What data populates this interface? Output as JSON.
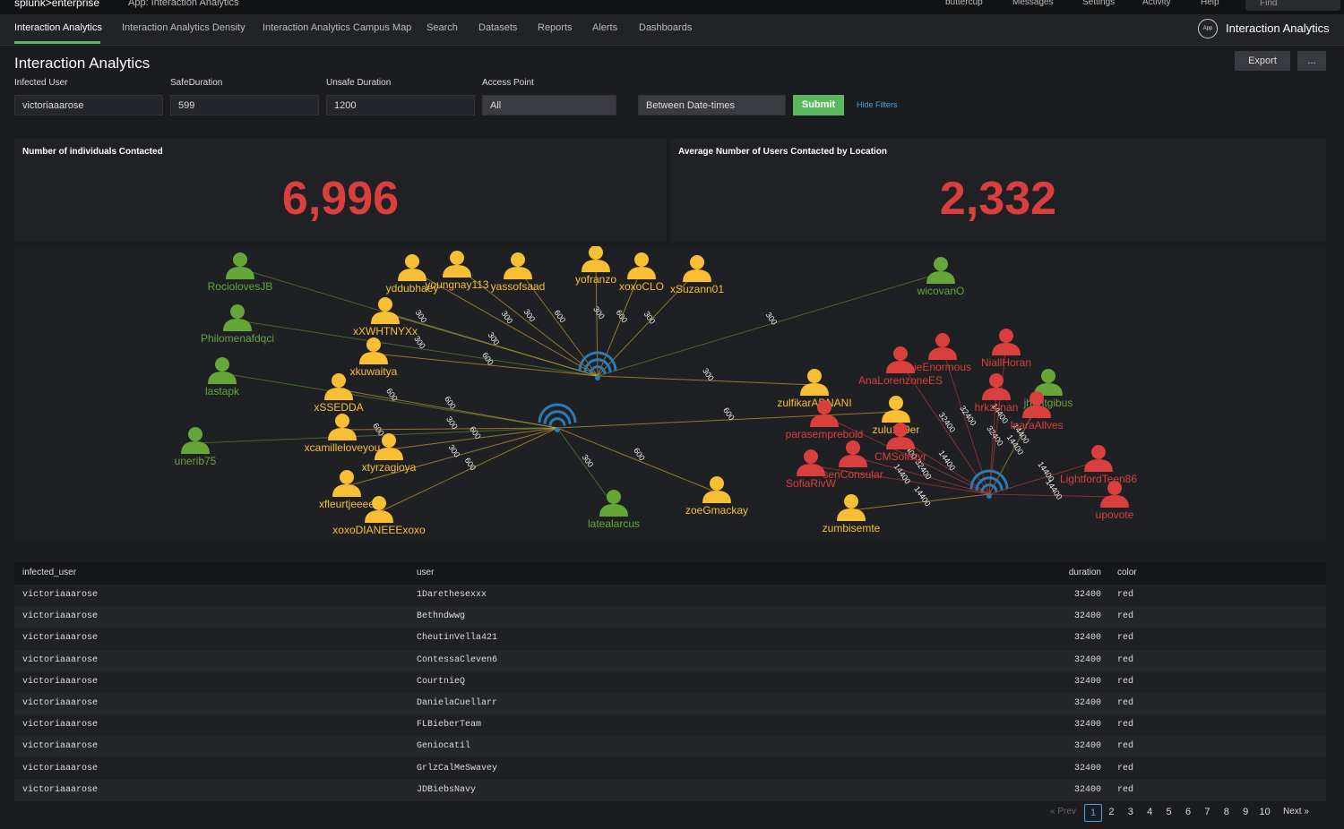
{
  "topbar": {
    "logo": "splunk>enterprise",
    "app": "App: Interaction Analytics",
    "menus": [
      "buttercup",
      "Messages",
      "Settings",
      "Activity",
      "Help"
    ],
    "find": "Find"
  },
  "nav": {
    "tabs": [
      "Interaction Analytics",
      "Interaction Analytics Density",
      "Interaction Analytics Campus Map",
      "Search",
      "Datasets",
      "Reports",
      "Alerts",
      "Dashboards"
    ],
    "app_icon": "App",
    "app_name": "Interaction Analytics"
  },
  "header": {
    "title": "Interaction Analytics",
    "export": "Export",
    "more": "..."
  },
  "filters": {
    "labels": [
      "Infected User",
      "SafeDuration",
      "Unsafe Duration",
      "Access Point"
    ],
    "values": [
      "victoriaaarose",
      "599",
      "1200",
      "All"
    ],
    "time": "Between Date-times",
    "submit": "Submit",
    "hide": "Hide Filters"
  },
  "panels": [
    {
      "title": "Number of individuals Contacted",
      "value": "6,996"
    },
    {
      "title": "Average Number of Users Contacted by Location",
      "value": "2,332"
    }
  ],
  "graph": {
    "nodes": [
      {
        "label": "RociolovesJB",
        "color": "green"
      },
      {
        "label": "Philomenafdqci",
        "color": "green"
      },
      {
        "label": "lastapk",
        "color": "green"
      },
      {
        "label": "unerib75",
        "color": "green"
      },
      {
        "label": "wicovanO",
        "color": "green"
      },
      {
        "label": "jhuntgibus",
        "color": "green"
      },
      {
        "label": "latealarcus",
        "color": "green"
      },
      {
        "label": "yddubhaey",
        "color": "yellow"
      },
      {
        "label": "youngnay113",
        "color": "yellow"
      },
      {
        "label": "yassofsaad",
        "color": "yellow"
      },
      {
        "label": "yofranzo",
        "color": "yellow"
      },
      {
        "label": "xoxoCLO",
        "color": "yellow"
      },
      {
        "label": "xSuzann01",
        "color": "yellow"
      },
      {
        "label": "xXWHTNYXx",
        "color": "yellow"
      },
      {
        "label": "xkuwaitya",
        "color": "yellow"
      },
      {
        "label": "xSSEDDA",
        "color": "yellow"
      },
      {
        "label": "xcamilleloveyou",
        "color": "yellow"
      },
      {
        "label": "xtyrzagioya",
        "color": "yellow"
      },
      {
        "label": "xfleurtjeeee",
        "color": "yellow"
      },
      {
        "label": "xoxoDIANEEExoxo",
        "color": "yellow"
      },
      {
        "label": "zulfikarADNANI",
        "color": "yellow"
      },
      {
        "label": "zulu149er",
        "color": "yellow"
      },
      {
        "label": "zoeGmackay",
        "color": "yellow"
      },
      {
        "label": "zumbisemte",
        "color": "yellow"
      },
      {
        "label": "parasemprebold",
        "color": "red"
      },
      {
        "label": "CMSolistyr",
        "color": "red"
      },
      {
        "label": "LightfordTeen86",
        "color": "red"
      },
      {
        "label": "upovote",
        "color": "red"
      },
      {
        "label": "AnaLorenzoneES",
        "color": "red"
      },
      {
        "label": "InaraAllves",
        "color": "red"
      },
      {
        "label": "hrkztinan",
        "color": "red"
      },
      {
        "label": "NiallHoran",
        "color": "red"
      },
      {
        "label": "ieEnormous",
        "color": "red"
      },
      {
        "label": "SofiaRivW",
        "color": "red"
      },
      {
        "label": "senConsular",
        "color": "red"
      }
    ],
    "edges": [
      {
        "from": 0,
        "to": 0,
        "label": "300"
      },
      {
        "from": 0,
        "to": 1,
        "label": "300"
      },
      {
        "from": 1,
        "to": 2,
        "label": "600"
      },
      {
        "from": 1,
        "to": 3,
        "label": "600"
      },
      {
        "from": 0,
        "to": 7,
        "label": "300"
      },
      {
        "from": 0,
        "to": 8,
        "label": "300"
      },
      {
        "from": 0,
        "to": 9,
        "label": "600"
      },
      {
        "from": 0,
        "to": 10,
        "label": "300"
      },
      {
        "from": 0,
        "to": 11,
        "label": "600"
      },
      {
        "from": 0,
        "to": 12,
        "label": "300"
      },
      {
        "from": 0,
        "to": 13,
        "label": "300"
      },
      {
        "from": 0,
        "to": 14,
        "label": "600"
      },
      {
        "from": 1,
        "to": 15,
        "label": "600"
      },
      {
        "from": 1,
        "to": 16,
        "label": "300"
      },
      {
        "from": 1,
        "to": 17,
        "label": "600"
      },
      {
        "from": 1,
        "to": 18,
        "label": "300"
      },
      {
        "from": 1,
        "to": 19,
        "label": "600"
      },
      {
        "from": 1,
        "to": 6,
        "label": "300"
      },
      {
        "from": 0,
        "to": 20,
        "label": "300"
      },
      {
        "from": 1,
        "to": 21,
        "label": "600"
      },
      {
        "from": 1,
        "to": 22,
        "label": "600"
      },
      {
        "from": 0,
        "to": 4,
        "label": "300"
      },
      {
        "from": 2,
        "to": 24,
        "label": "14400"
      },
      {
        "from": 2,
        "to": 25,
        "label": "14400"
      },
      {
        "from": 2,
        "to": 26,
        "label": "14400"
      },
      {
        "from": 2,
        "to": 27,
        "label": "14400"
      },
      {
        "from": 2,
        "to": 28,
        "label": "32400"
      },
      {
        "from": 2,
        "to": 29,
        "label": "14400"
      },
      {
        "from": 2,
        "to": 30,
        "label": "32400"
      },
      {
        "from": 2,
        "to": 31,
        "label": "14400"
      },
      {
        "from": 2,
        "to": 32,
        "label": "32400"
      },
      {
        "from": 2,
        "to": 33,
        "label": "14400"
      },
      {
        "from": 2,
        "to": 34,
        "label": "32400"
      },
      {
        "from": 2,
        "to": 23,
        "label": "14400"
      },
      {
        "from": 2,
        "to": 5,
        "label": "14400"
      }
    ]
  },
  "table": {
    "columns": [
      "infected_user",
      "user",
      "duration",
      "color"
    ],
    "rows": [
      [
        "victoriaaarose",
        "1Darethesexxx",
        32400,
        "red"
      ],
      [
        "victoriaaarose",
        "Bethndwwg",
        32400,
        "red"
      ],
      [
        "victoriaaarose",
        "CheutinVella421",
        32400,
        "red"
      ],
      [
        "victoriaaarose",
        "ContessaCleven6",
        32400,
        "red"
      ],
      [
        "victoriaaarose",
        "CourtnieQ",
        32400,
        "red"
      ],
      [
        "victoriaaarose",
        "DanielaCuellarr",
        32400,
        "red"
      ],
      [
        "victoriaaarose",
        "FLBieberTeam",
        32400,
        "red"
      ],
      [
        "victoriaaarose",
        "Geniocatil",
        32400,
        "red"
      ],
      [
        "victoriaaarose",
        "GrlzCalMeSwavey",
        32400,
        "red"
      ],
      [
        "victoriaaarose",
        "JDBiebsNavy",
        32400,
        "red"
      ]
    ]
  },
  "pagination": {
    "prev": "« Prev",
    "pages": [
      "1",
      "2",
      "3",
      "4",
      "5",
      "6",
      "7",
      "8",
      "9",
      "10"
    ],
    "next": "Next »"
  }
}
